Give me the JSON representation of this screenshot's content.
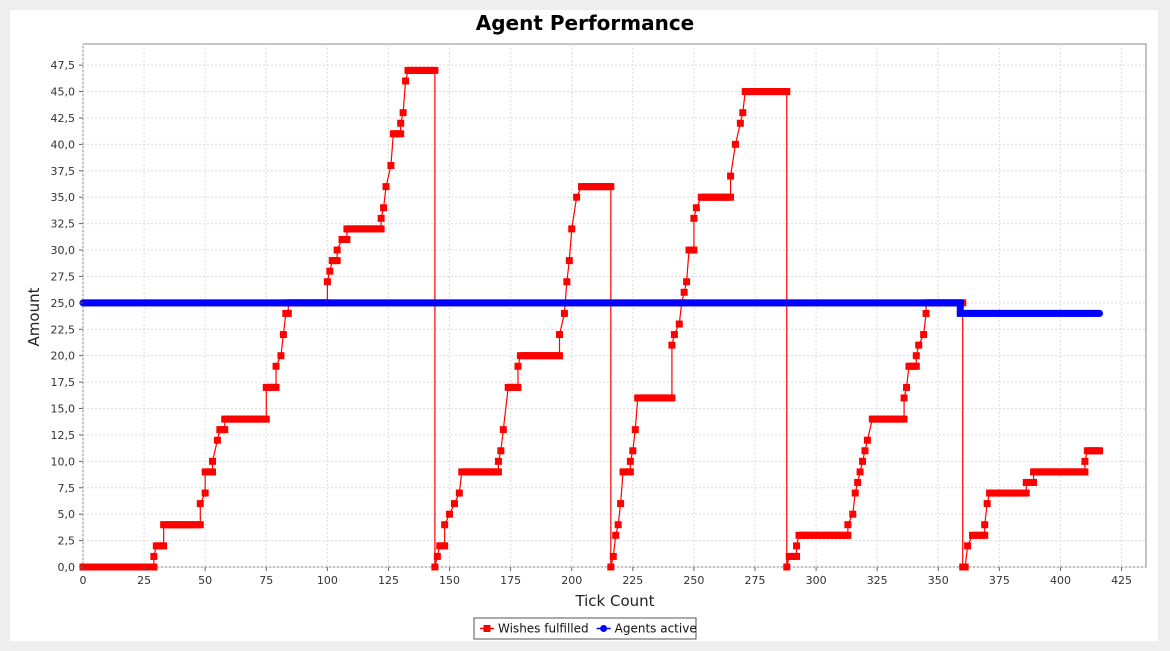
{
  "chart_data": {
    "type": "line",
    "title": "Agent Performance",
    "xlabel": "Tick Count",
    "ylabel": "Amount",
    "xlim": [
      0,
      435
    ],
    "ylim": [
      0,
      49.5
    ],
    "xticks": [
      0,
      25,
      50,
      75,
      100,
      125,
      150,
      175,
      200,
      225,
      250,
      275,
      300,
      325,
      350,
      375,
      400,
      425
    ],
    "xtick_labels": [
      "0",
      "25",
      "50",
      "75",
      "100",
      "125",
      "150",
      "175",
      "200",
      "225",
      "250",
      "275",
      "300",
      "325",
      "350",
      "375",
      "400",
      "425"
    ],
    "yticks": [
      0,
      2.5,
      5,
      7.5,
      10,
      12.5,
      15,
      17.5,
      20,
      22.5,
      25,
      27.5,
      30,
      32.5,
      35,
      37.5,
      40,
      42.5,
      45,
      47.5
    ],
    "ytick_labels": [
      "0,0",
      "2,5",
      "5,0",
      "7,5",
      "10,0",
      "12,5",
      "15,0",
      "17,5",
      "20,0",
      "22,5",
      "25,0",
      "27,5",
      "30,0",
      "32,5",
      "35,0",
      "37,5",
      "40,0",
      "42,5",
      "45,0",
      "47,5"
    ],
    "grid": true,
    "legend_position": "bottom",
    "series": [
      {
        "name": "Wishes fulfilled",
        "color": "#ff0000",
        "marker": "square",
        "points": [
          [
            0,
            0
          ],
          [
            29,
            0
          ],
          [
            29,
            1
          ],
          [
            30,
            2
          ],
          [
            33,
            2
          ],
          [
            33,
            4
          ],
          [
            48,
            4
          ],
          [
            48,
            6
          ],
          [
            50,
            7
          ],
          [
            50,
            9
          ],
          [
            53,
            9
          ],
          [
            53,
            10
          ],
          [
            55,
            12
          ],
          [
            56,
            13
          ],
          [
            58,
            13
          ],
          [
            58,
            14
          ],
          [
            75,
            14
          ],
          [
            75,
            17
          ],
          [
            79,
            17
          ],
          [
            79,
            19
          ],
          [
            81,
            20
          ],
          [
            82,
            22
          ],
          [
            83,
            24
          ],
          [
            84,
            24
          ],
          [
            84,
            25
          ],
          [
            100,
            25
          ],
          [
            100,
            27
          ],
          [
            101,
            28
          ],
          [
            102,
            29
          ],
          [
            104,
            29
          ],
          [
            104,
            30
          ],
          [
            106,
            31
          ],
          [
            108,
            31
          ],
          [
            108,
            32
          ],
          [
            122,
            32
          ],
          [
            122,
            33
          ],
          [
            123,
            34
          ],
          [
            124,
            36
          ],
          [
            126,
            38
          ],
          [
            127,
            41
          ],
          [
            130,
            41
          ],
          [
            130,
            42
          ],
          [
            131,
            43
          ],
          [
            132,
            46
          ],
          [
            133,
            47
          ],
          [
            144,
            47
          ],
          [
            144,
            0
          ],
          [
            145,
            1
          ],
          [
            146,
            2
          ],
          [
            148,
            2
          ],
          [
            148,
            4
          ],
          [
            150,
            5
          ],
          [
            152,
            6
          ],
          [
            154,
            7
          ],
          [
            155,
            9
          ],
          [
            170,
            9
          ],
          [
            170,
            10
          ],
          [
            171,
            11
          ],
          [
            172,
            13
          ],
          [
            174,
            17
          ],
          [
            178,
            17
          ],
          [
            178,
            19
          ],
          [
            179,
            20
          ],
          [
            195,
            20
          ],
          [
            195,
            22
          ],
          [
            197,
            24
          ],
          [
            198,
            27
          ],
          [
            199,
            29
          ],
          [
            200,
            32
          ],
          [
            202,
            35
          ],
          [
            204,
            36
          ],
          [
            216,
            36
          ],
          [
            216,
            0
          ],
          [
            217,
            1
          ],
          [
            218,
            3
          ],
          [
            219,
            4
          ],
          [
            220,
            6
          ],
          [
            221,
            9
          ],
          [
            224,
            9
          ],
          [
            224,
            10
          ],
          [
            225,
            11
          ],
          [
            226,
            13
          ],
          [
            227,
            16
          ],
          [
            241,
            16
          ],
          [
            241,
            21
          ],
          [
            242,
            22
          ],
          [
            244,
            23
          ],
          [
            245,
            25
          ],
          [
            246,
            26
          ],
          [
            247,
            27
          ],
          [
            248,
            30
          ],
          [
            250,
            30
          ],
          [
            250,
            33
          ],
          [
            251,
            34
          ],
          [
            253,
            35
          ],
          [
            265,
            35
          ],
          [
            265,
            37
          ],
          [
            267,
            40
          ],
          [
            269,
            42
          ],
          [
            270,
            43
          ],
          [
            271,
            45
          ],
          [
            288,
            45
          ],
          [
            288,
            0
          ],
          [
            289,
            1
          ],
          [
            292,
            1
          ],
          [
            292,
            2
          ],
          [
            293,
            3
          ],
          [
            313,
            3
          ],
          [
            313,
            4
          ],
          [
            315,
            5
          ],
          [
            316,
            7
          ],
          [
            317,
            8
          ],
          [
            318,
            9
          ],
          [
            319,
            10
          ],
          [
            320,
            11
          ],
          [
            321,
            12
          ],
          [
            323,
            14
          ],
          [
            336,
            14
          ],
          [
            336,
            16
          ],
          [
            337,
            17
          ],
          [
            338,
            19
          ],
          [
            341,
            19
          ],
          [
            341,
            20
          ],
          [
            342,
            21
          ],
          [
            344,
            22
          ],
          [
            345,
            24
          ],
          [
            345,
            25
          ],
          [
            360,
            25
          ],
          [
            360,
            0
          ],
          [
            361,
            0
          ],
          [
            362,
            2
          ],
          [
            364,
            3
          ],
          [
            369,
            3
          ],
          [
            369,
            4
          ],
          [
            370,
            6
          ],
          [
            371,
            7
          ],
          [
            386,
            7
          ],
          [
            386,
            8
          ],
          [
            389,
            8
          ],
          [
            389,
            9
          ],
          [
            410,
            9
          ],
          [
            410,
            10
          ],
          [
            411,
            11
          ],
          [
            416,
            11
          ]
        ]
      },
      {
        "name": "Agents active",
        "color": "#0000ff",
        "marker": "circle",
        "points": [
          [
            0,
            25
          ],
          [
            359,
            25
          ],
          [
            359,
            24
          ],
          [
            416,
            24
          ]
        ]
      }
    ]
  }
}
